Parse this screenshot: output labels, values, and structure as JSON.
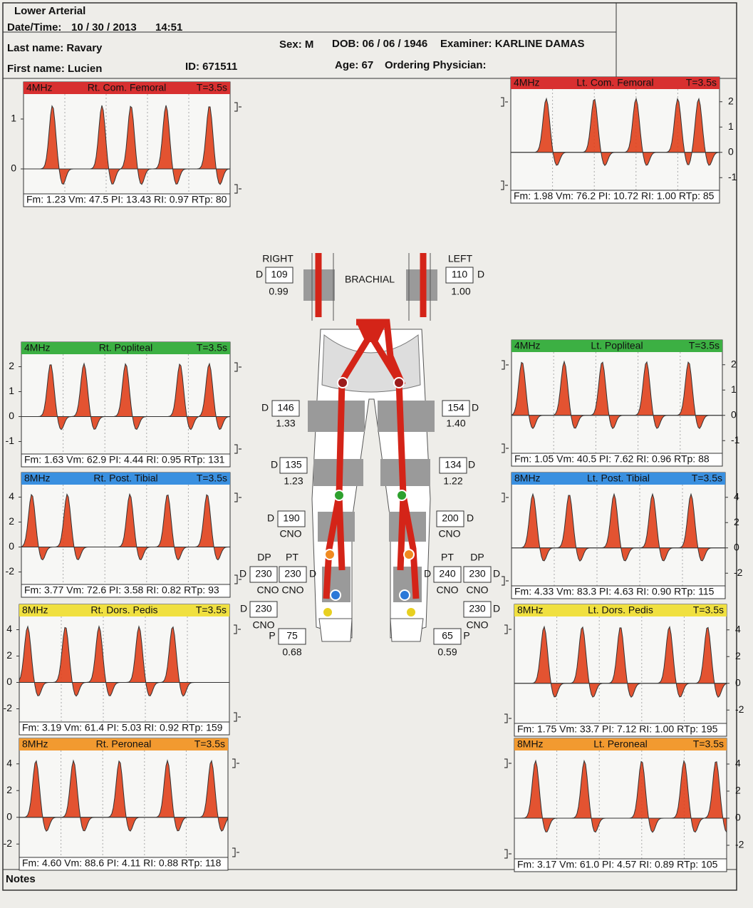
{
  "header": {
    "title": "Lower Arterial",
    "date_time_label": "Date/Time:",
    "date": "10 / 30 / 2013",
    "time": "14:51",
    "last_name": "Last name: Ravary",
    "first_name": "First name: Lucien",
    "id": "ID: 671511",
    "sex": "Sex: M",
    "dob": "DOB: 06 / 06 / 1946",
    "examiner": "Examiner: KARLINE DAMAS",
    "age": "Age: 67",
    "physician": "Ordering Physician:"
  },
  "panels": [
    {
      "freq": "4MHz",
      "name": "Rt. Com. Femoral",
      "time": "T=3.5s",
      "header_color": "#d83030",
      "header_text_color": "#f4b0b0",
      "scale": [
        "1",
        "0"
      ],
      "stats": "Fm: 1.23 Vm: 47.5 PI: 13.43 RI: 0.97 RTp: 80"
    },
    {
      "freq": "4MHz",
      "name": "Lt. Com. Femoral",
      "time": "T=3.5s",
      "header_color": "#d83030",
      "header_text_color": "#f4b0b0",
      "scale": [
        "2",
        "1",
        "0",
        "-1"
      ],
      "stats": "Fm: 1.98 Vm: 76.2 PI: 10.72 RI: 1.00 RTp: 85"
    },
    {
      "freq": "4MHz",
      "name": "Rt. Popliteal",
      "time": "T=3.5s",
      "header_color": "#3cb043",
      "header_text_color": "#b8ecb8",
      "scale": [
        "2",
        "1",
        "0",
        "-1"
      ],
      "stats": "Fm: 1.63 Vm: 62.9 PI: 4.44 RI: 0.95 RTp: 131"
    },
    {
      "freq": "4MHz",
      "name": "Lt. Popliteal",
      "time": "T=3.5s",
      "header_color": "#3cb043",
      "header_text_color": "#b8ecb8",
      "scale": [
        "2",
        "1",
        "0",
        "-1"
      ],
      "stats": "Fm: 1.05 Vm: 40.5 PI: 7.62 RI: 0.96 RTp: 88"
    },
    {
      "freq": "8MHz",
      "name": "Rt. Post. Tibial",
      "time": "T=3.5s",
      "header_color": "#3a90e0",
      "header_text_color": "#c0e0ff",
      "scale": [
        "4",
        "2",
        "0",
        "-2"
      ],
      "stats": "Fm: 3.77 Vm: 72.6 PI: 3.58 RI: 0.82 RTp: 93"
    },
    {
      "freq": "8MHz",
      "name": "Lt. Post. Tibial",
      "time": "T=3.5s",
      "header_color": "#3a90e0",
      "header_text_color": "#c0e0ff",
      "scale": [
        "4",
        "2",
        "0",
        "-2"
      ],
      "stats": "Fm: 4.33 Vm: 83.3 PI: 4.63 RI: 0.90 RTp: 115"
    },
    {
      "freq": "8MHz",
      "name": "Rt. Dors. Pedis",
      "time": "T=3.5s",
      "header_color": "#f0e040",
      "header_text_color": "#222222",
      "scale": [
        "4",
        "2",
        "0",
        "-2"
      ],
      "stats": "Fm: 3.19 Vm: 61.4 PI: 5.03 RI: 0.92 RTp: 159"
    },
    {
      "freq": "8MHz",
      "name": "Lt. Dors. Pedis",
      "time": "T=3.5s",
      "header_color": "#f0e040",
      "header_text_color": "#222222",
      "scale": [
        "4",
        "2",
        "0",
        "-2"
      ],
      "stats": "Fm: 1.75 Vm: 33.7 PI: 7.12 RI: 1.00 RTp: 195"
    },
    {
      "freq": "8MHz",
      "name": "Rt. Peroneal",
      "time": "T=3.5s",
      "header_color": "#f29a30",
      "header_text_color": "#222222",
      "scale": [
        "4",
        "2",
        "0",
        "-2"
      ],
      "stats": "Fm: 4.60 Vm: 88.6 PI: 4.11 RI: 0.88 RTp: 118"
    },
    {
      "freq": "8MHz",
      "name": "Lt. Peroneal",
      "time": "T=3.5s",
      "header_color": "#f29a30",
      "header_text_color": "#222222",
      "scale": [
        "4",
        "2",
        "0",
        "-2"
      ],
      "stats": "Fm: 3.17 Vm: 61.0 PI: 4.57 RI: 0.89 RTp: 105"
    }
  ],
  "center": [
    "RIGHT",
    "D",
    "109",
    "0.99",
    "BRACHIAL",
    "LEFT",
    "110",
    "D",
    "1.00",
    "D",
    "146",
    "1.33",
    "154",
    "D",
    "1.40",
    "D",
    "135",
    "1.23",
    "134",
    "D",
    "1.22",
    "D",
    "190",
    "CNO",
    "200",
    "D",
    "CNO",
    "DP",
    "PT",
    "D",
    "230",
    "230",
    "D",
    "CNO",
    "CNO",
    "PT",
    "DP",
    "D",
    "240",
    "230",
    "D",
    "CNO",
    "CNO",
    "D",
    "230",
    "CNO",
    "230",
    "D",
    "CNO",
    "P",
    "75",
    "0.68",
    "65",
    "P",
    "0.59"
  ],
  "notes": "Notes"
}
